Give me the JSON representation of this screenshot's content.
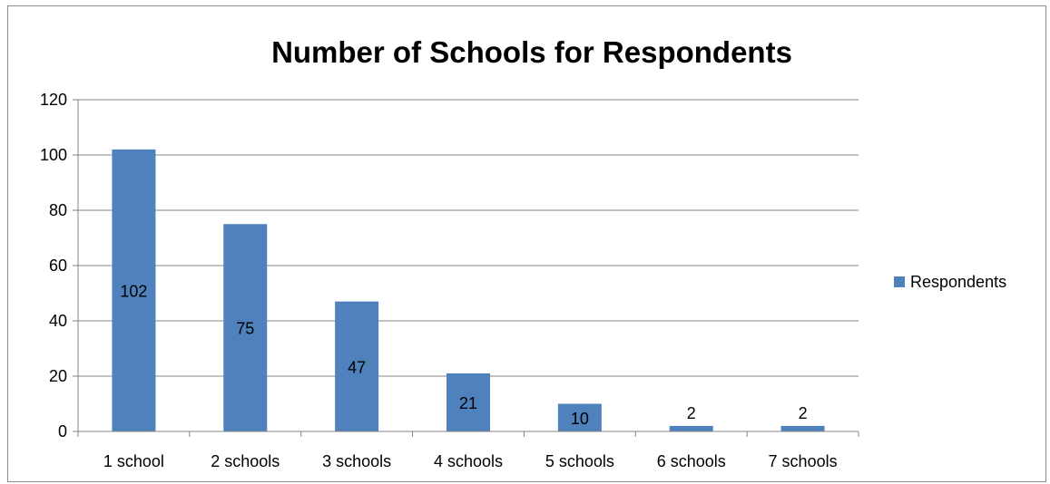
{
  "chart_data": {
    "type": "bar",
    "title": "Number of Schools for Respondents",
    "categories": [
      "1 school",
      "2 schools",
      "3 schools",
      "4 schools",
      "5 schools",
      "6 schools",
      "7 schools"
    ],
    "series": [
      {
        "name": "Respondents",
        "values": [
          102,
          75,
          47,
          21,
          10,
          2,
          2
        ],
        "color": "#4f81bd"
      }
    ],
    "data_labels": [
      "102",
      "75",
      "47",
      "21",
      "10",
      "2",
      "2"
    ],
    "ylim": [
      0,
      120
    ],
    "y_ticks": [
      0,
      20,
      40,
      60,
      80,
      100,
      120
    ],
    "y_tick_labels": [
      "0",
      "20",
      "40",
      "60",
      "80",
      "100",
      "120"
    ],
    "grid": true,
    "legend_position": "right",
    "gridline_color": "#868686",
    "axis_color": "#868686"
  }
}
